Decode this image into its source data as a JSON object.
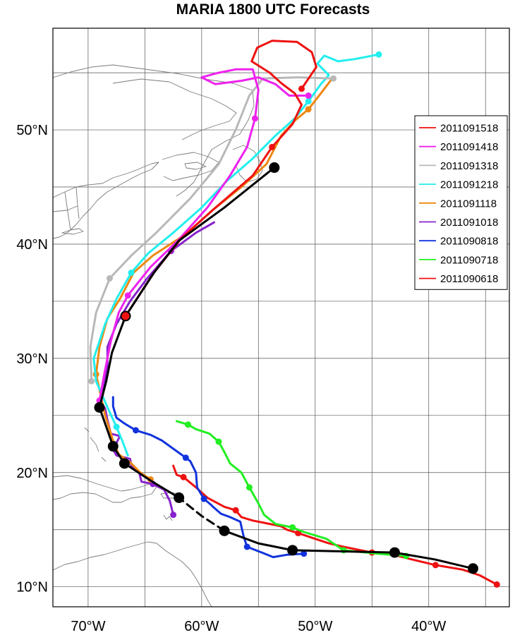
{
  "chart_data": {
    "type": "line",
    "title": "MARIA 1800 UTC Forecasts",
    "xlabel": "",
    "ylabel": "",
    "xlim": [
      -73.1,
      -32.9
    ],
    "ylim": [
      8.25,
      58.9
    ],
    "x_ticks": [
      {
        "value": -70,
        "label": "70°W"
      },
      {
        "value": -60,
        "label": "60°W"
      },
      {
        "value": -50,
        "label": "50°W"
      },
      {
        "value": -40,
        "label": "40°W"
      }
    ],
    "y_ticks": [
      {
        "value": 10,
        "label": "10°N"
      },
      {
        "value": 20,
        "label": "20°N"
      },
      {
        "value": 30,
        "label": "30°N"
      },
      {
        "value": 40,
        "label": "40°N"
      },
      {
        "value": 50,
        "label": "50°N"
      }
    ],
    "grid": true,
    "legend_position": "right",
    "best_track": {
      "color": "#000000",
      "points": [
        {
          "lon": -36.1,
          "lat": 11.6,
          "marker": true
        },
        {
          "lon": -39.5,
          "lat": 12.4
        },
        {
          "lon": -43.0,
          "lat": 13.0,
          "marker": true
        },
        {
          "lon": -47.5,
          "lat": 13.1
        },
        {
          "lon": -52.0,
          "lat": 13.2,
          "marker": true
        },
        {
          "lon": -55.0,
          "lat": 13.8
        },
        {
          "lon": -58.0,
          "lat": 14.9,
          "marker": true
        },
        {
          "lon": -60.0,
          "lat": 16.2,
          "dashed_from_here": true
        },
        {
          "lon": -62.0,
          "lat": 17.8,
          "marker": true
        },
        {
          "lon": -64.5,
          "lat": 19.3
        },
        {
          "lon": -66.8,
          "lat": 20.8,
          "marker": true
        },
        {
          "lon": -67.8,
          "lat": 22.3,
          "marker": true
        },
        {
          "lon": -69.0,
          "lat": 25.7,
          "marker": true
        },
        {
          "lon": -68.4,
          "lat": 28.0
        },
        {
          "lon": -67.9,
          "lat": 30.5
        },
        {
          "lon": -66.7,
          "lat": 33.7,
          "marker": true,
          "red_center": true
        },
        {
          "lon": -64.2,
          "lat": 37.5
        },
        {
          "lon": -62.0,
          "lat": 40.3
        },
        {
          "lon": -58.0,
          "lat": 43.2
        },
        {
          "lon": -53.6,
          "lat": 46.7,
          "marker": true
        }
      ]
    },
    "series": [
      {
        "name": "2011091518",
        "color": "#ee1111",
        "points": [
          [
            -66.7,
            33.7
          ],
          [
            -64.2,
            37.5
          ],
          [
            -61.8,
            40.5
          ],
          [
            -59.0,
            43.0
          ],
          [
            -55.5,
            46.0
          ],
          [
            -53.8,
            48.5
          ],
          [
            -52.0,
            50.5
          ],
          [
            -51.2,
            52.2
          ],
          [
            -51.8,
            53.2
          ],
          [
            -53.0,
            54.1
          ],
          [
            -54.0,
            55.0
          ],
          [
            -55.6,
            56.0
          ],
          [
            -55.1,
            57.2
          ],
          [
            -53.8,
            57.8
          ],
          [
            -51.6,
            57.7
          ],
          [
            -50.3,
            56.8
          ],
          [
            -49.9,
            55.5
          ],
          [
            -51.2,
            53.6
          ]
        ],
        "marker_indices": [
          5,
          17
        ]
      },
      {
        "name": "2011091418",
        "color": "#ee22ee",
        "points": [
          [
            -69.0,
            26.3
          ],
          [
            -68.6,
            28.5
          ],
          [
            -68.0,
            31.5
          ],
          [
            -67.3,
            34.0
          ],
          [
            -66.5,
            35.5
          ],
          [
            -64.5,
            38.0
          ],
          [
            -62.0,
            40.4
          ],
          [
            -59.5,
            43.2
          ],
          [
            -57.5,
            46.0
          ],
          [
            -56.0,
            48.5
          ],
          [
            -55.3,
            51.0
          ],
          [
            -55.0,
            53.5
          ],
          [
            -55.5,
            55.3
          ],
          [
            -57.0,
            55.3
          ],
          [
            -58.5,
            55.0
          ],
          [
            -60.0,
            54.6
          ],
          [
            -58.8,
            54.0
          ],
          [
            -56.5,
            54.3
          ],
          [
            -55.0,
            54.6
          ],
          [
            -53.5,
            54.0
          ],
          [
            -52.3,
            53.0
          ],
          [
            -50.6,
            53.0
          ]
        ],
        "marker_indices": [
          0,
          4,
          10,
          21
        ]
      },
      {
        "name": "2011091318",
        "color": "#b8b8b8",
        "points": [
          [
            -69.7,
            28.0
          ],
          [
            -69.8,
            31.0
          ],
          [
            -69.3,
            34.0
          ],
          [
            -68.1,
            37.0
          ],
          [
            -66.2,
            39.0
          ],
          [
            -64.0,
            41.0
          ],
          [
            -61.0,
            44.0
          ],
          [
            -58.5,
            47.0
          ],
          [
            -57.0,
            50.0
          ],
          [
            -55.8,
            53.0
          ],
          [
            -54.6,
            54.5
          ],
          [
            -51.5,
            54.6
          ],
          [
            -48.4,
            54.5
          ]
        ],
        "marker_indices": [
          0,
          3,
          12
        ]
      },
      {
        "name": "2011091218",
        "color": "#22eeee",
        "points": [
          [
            -66.5,
            21.5
          ],
          [
            -67.0,
            22.8
          ],
          [
            -67.5,
            24.0
          ],
          [
            -68.2,
            25.5
          ],
          [
            -69.3,
            28.0
          ],
          [
            -69.5,
            30.0
          ],
          [
            -68.5,
            33.0
          ],
          [
            -67.5,
            35.2
          ],
          [
            -66.2,
            37.5
          ],
          [
            -64.7,
            39.2
          ],
          [
            -62.5,
            41.0
          ],
          [
            -60.0,
            43.2
          ],
          [
            -57.8,
            45.5
          ],
          [
            -55.5,
            47.5
          ],
          [
            -53.5,
            49.5
          ],
          [
            -51.8,
            51.0
          ],
          [
            -50.6,
            52.5
          ],
          [
            -49.5,
            54.0
          ],
          [
            -48.8,
            54.8
          ],
          [
            -49.8,
            55.8
          ],
          [
            -49.2,
            56.5
          ],
          [
            -48.0,
            56.0
          ],
          [
            -46.5,
            56.2
          ],
          [
            -44.4,
            56.6
          ]
        ],
        "marker_indices": [
          2,
          8,
          16,
          23
        ]
      },
      {
        "name": "2011091118",
        "color": "#ee8811",
        "points": [
          [
            -64.5,
            19.4
          ],
          [
            -65.4,
            20.0
          ],
          [
            -66.3,
            20.9
          ],
          [
            -67.3,
            21.6
          ],
          [
            -67.7,
            22.5
          ],
          [
            -68.5,
            25.0
          ],
          [
            -69.3,
            28.6
          ],
          [
            -69.0,
            31.0
          ],
          [
            -68.3,
            33.5
          ],
          [
            -67.2,
            35.2
          ],
          [
            -66.0,
            37.5
          ],
          [
            -64.3,
            39.0
          ],
          [
            -61.5,
            40.8
          ],
          [
            -59.0,
            43.0
          ],
          [
            -56.5,
            45.0
          ],
          [
            -54.3,
            47.0
          ],
          [
            -53.0,
            49.5
          ],
          [
            -51.8,
            50.8
          ],
          [
            -50.6,
            51.8
          ],
          [
            -49.5,
            53.2
          ],
          [
            -48.5,
            54.5
          ]
        ],
        "marker_indices": [
          0,
          6,
          18
        ]
      },
      {
        "name": "2011091018",
        "color": "#8822cc",
        "points": [
          [
            -62.5,
            16.3
          ],
          [
            -62.8,
            17.5
          ],
          [
            -63.3,
            18.5
          ],
          [
            -64.3,
            19.0
          ],
          [
            -65.3,
            19.2
          ],
          [
            -65.5,
            20.0
          ],
          [
            -66.2,
            20.6
          ],
          [
            -66.3,
            21.2
          ],
          [
            -67.5,
            21.5
          ],
          [
            -67.8,
            22.0
          ],
          [
            -67.2,
            23.2
          ],
          [
            -68.0,
            23.4
          ],
          [
            -68.3,
            24.6
          ],
          [
            -68.5,
            25.6
          ],
          [
            -68.9,
            26.2
          ],
          [
            -68.7,
            27.5
          ],
          [
            -68.3,
            29.2
          ],
          [
            -68.3,
            31.0
          ],
          [
            -67.5,
            33.0
          ],
          [
            -66.3,
            35.0
          ],
          [
            -64.8,
            37.0
          ],
          [
            -62.7,
            39.4
          ],
          [
            -60.5,
            41.0
          ],
          [
            -58.9,
            41.9
          ]
        ],
        "marker_indices": [
          0,
          3,
          21
        ]
      },
      {
        "name": "2011090818",
        "color": "#1133dd",
        "points": [
          [
            -51.0,
            12.9
          ],
          [
            -52.5,
            12.8
          ],
          [
            -53.7,
            12.6
          ],
          [
            -54.7,
            13.0
          ],
          [
            -56.0,
            13.5
          ],
          [
            -56.3,
            14.4
          ],
          [
            -56.6,
            15.7
          ],
          [
            -57.5,
            16.1
          ],
          [
            -58.3,
            16.4
          ],
          [
            -59.0,
            17.0
          ],
          [
            -59.2,
            17.2
          ],
          [
            -59.8,
            17.7
          ],
          [
            -60.4,
            18.7
          ],
          [
            -60.5,
            20.0
          ],
          [
            -61.0,
            21.0
          ],
          [
            -61.4,
            21.3
          ],
          [
            -62.8,
            22.3
          ],
          [
            -63.5,
            22.8
          ],
          [
            -64.5,
            23.3
          ],
          [
            -65.8,
            23.7
          ],
          [
            -66.8,
            24.3
          ],
          [
            -67.5,
            24.8
          ],
          [
            -67.8,
            25.8
          ],
          [
            -67.8,
            26.6
          ]
        ],
        "marker_indices": [
          0,
          4,
          11,
          15,
          19
        ]
      },
      {
        "name": "2011090718",
        "color": "#22ee22",
        "points": [
          [
            -42.0,
            12.7
          ],
          [
            -44.5,
            12.9
          ],
          [
            -47.5,
            13.2
          ],
          [
            -49.0,
            14.2
          ],
          [
            -51.0,
            14.8
          ],
          [
            -52.0,
            15.2
          ],
          [
            -53.5,
            15.5
          ],
          [
            -54.5,
            16.3
          ],
          [
            -55.0,
            17.3
          ],
          [
            -55.8,
            18.7
          ],
          [
            -56.5,
            20.0
          ],
          [
            -57.5,
            20.8
          ],
          [
            -58.0,
            21.8
          ],
          [
            -58.5,
            22.7
          ],
          [
            -59.3,
            23.4
          ],
          [
            -60.5,
            23.8
          ],
          [
            -61.2,
            24.2
          ],
          [
            -62.2,
            24.5
          ]
        ],
        "marker_indices": [
          0,
          2,
          5,
          9,
          13,
          16
        ]
      },
      {
        "name": "2011090618",
        "color": "#ee1111",
        "points": [
          [
            -34.0,
            10.2
          ],
          [
            -35.5,
            11.0
          ],
          [
            -37.0,
            11.5
          ],
          [
            -39.4,
            11.9
          ],
          [
            -41.5,
            12.4
          ],
          [
            -43.5,
            12.9
          ],
          [
            -45.0,
            13.0
          ],
          [
            -46.0,
            13.2
          ],
          [
            -47.5,
            13.5
          ],
          [
            -48.8,
            13.8
          ],
          [
            -50.0,
            14.2
          ],
          [
            -51.5,
            14.7
          ],
          [
            -52.5,
            15.0
          ],
          [
            -53.0,
            15.3
          ],
          [
            -54.5,
            15.6
          ],
          [
            -55.5,
            15.8
          ],
          [
            -56.5,
            16.1
          ],
          [
            -57.0,
            16.7
          ],
          [
            -58.0,
            17.0
          ],
          [
            -59.5,
            17.8
          ],
          [
            -60.5,
            18.7
          ],
          [
            -61.6,
            19.6
          ],
          [
            -62.2,
            19.8
          ],
          [
            -62.5,
            20.6
          ]
        ],
        "marker_indices": [
          0,
          3,
          6,
          11,
          17,
          21
        ]
      }
    ]
  }
}
